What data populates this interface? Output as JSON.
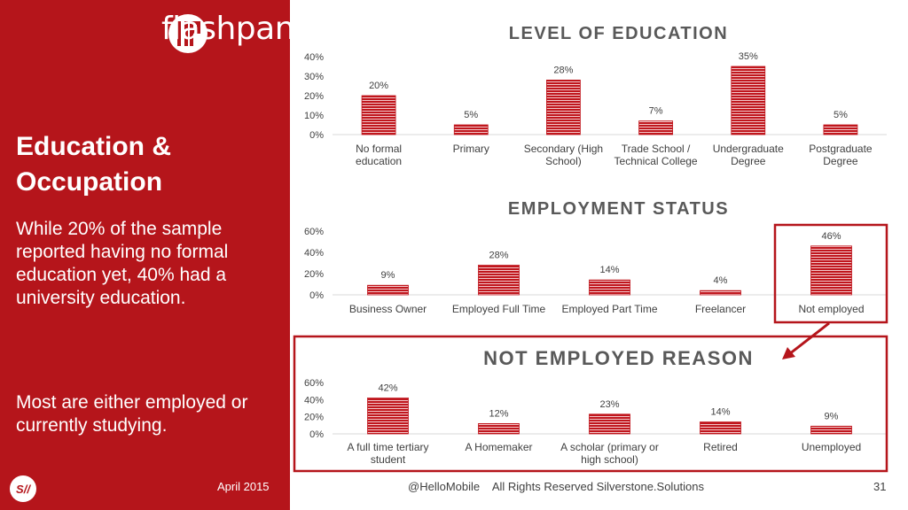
{
  "brand": {
    "name": "flashpanel",
    "footer_logo_text": "S//"
  },
  "sidebar": {
    "title_line1": "Education &",
    "title_line2": "Occupation",
    "paragraph1": "While 20% of the sample reported having no formal education yet, 40% had a university education.",
    "paragraph2": "Most are either employed or currently studying."
  },
  "footer": {
    "date": "April 2015",
    "center": "@HelloMobile    All Rights Reserved Silverstone.Solutions",
    "page": "31"
  },
  "colors": {
    "sidebar": "#b5151b",
    "bar": "#c0161d",
    "highlight_border": "#b5151b"
  },
  "chart_data": [
    {
      "type": "bar",
      "title": "LEVEL OF EDUCATION",
      "categories": [
        [
          "No formal",
          "education"
        ],
        [
          "Primary"
        ],
        [
          "Secondary (High",
          "School)"
        ],
        [
          "Trade School /",
          "Technical College"
        ],
        [
          "Undergraduate",
          "Degree"
        ],
        [
          "Postgraduate",
          "Degree"
        ]
      ],
      "values": [
        20,
        5,
        28,
        7,
        35,
        5
      ],
      "value_labels": [
        "20%",
        "5%",
        "28%",
        "7%",
        "35%",
        "5%"
      ],
      "yticks": [
        "0%",
        "10%",
        "20%",
        "30%",
        "40%"
      ],
      "ylim": [
        0,
        40
      ]
    },
    {
      "type": "bar",
      "title": "EMPLOYMENT STATUS",
      "categories": [
        [
          "Business Owner"
        ],
        [
          "Employed Full Time"
        ],
        [
          "Employed Part Time"
        ],
        [
          "Freelancer"
        ],
        [
          "Not employed"
        ]
      ],
      "values": [
        9,
        28,
        14,
        4,
        46
      ],
      "value_labels": [
        "9%",
        "28%",
        "14%",
        "4%",
        "46%"
      ],
      "yticks": [
        "0%",
        "20%",
        "40%",
        "60%"
      ],
      "ylim": [
        0,
        60
      ],
      "highlighted_category": "Not employed"
    },
    {
      "type": "bar",
      "title": "NOT EMPLOYED REASON",
      "categories": [
        [
          "A full time tertiary",
          "student"
        ],
        [
          "A Homemaker"
        ],
        [
          "A scholar (primary or",
          "high school)"
        ],
        [
          "Retired"
        ],
        [
          "Unemployed"
        ]
      ],
      "values": [
        42,
        12,
        23,
        14,
        9
      ],
      "value_labels": [
        "42%",
        "12%",
        "23%",
        "14%",
        "9%"
      ],
      "yticks": [
        "0%",
        "20%",
        "40%",
        "60%"
      ],
      "ylim": [
        0,
        60
      ],
      "highlighted": true
    }
  ]
}
